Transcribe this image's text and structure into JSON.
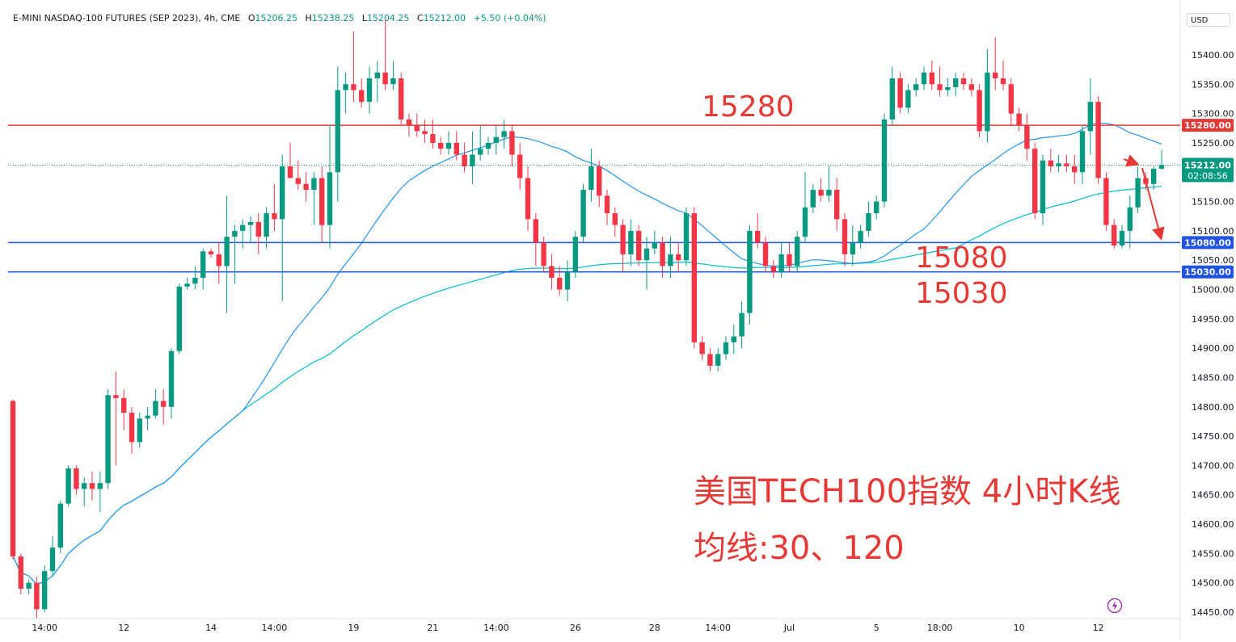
{
  "header": {
    "symbol": "E-MINI NASDAQ-100 FUTURES (SEP 2023), 4h, CME",
    "open_label": "O",
    "open": "15206.25",
    "high_label": "H",
    "high": "15238.25",
    "low_label": "L",
    "low": "15204.25",
    "close_label": "C",
    "close": "15212.00",
    "change": "+5.50 (+0.04%)"
  },
  "currency": "USD",
  "colors": {
    "up": "#089981",
    "down": "#f23645",
    "ma30": "#2196f3",
    "ma120": "#00bcd4",
    "resistance": "#e53935",
    "support": "#1e53e5",
    "annotation": "#e53935"
  },
  "annotations": {
    "resistance": "15280",
    "support_1": "15080",
    "support_2": "15030",
    "caption_line1": "美国TECH100指数 4小时K线",
    "caption_line2": "均线:30、120"
  },
  "chart_data": {
    "type": "candlestick",
    "title": "E-MINI NASDAQ-100 FUTURES (SEP 2023), 4h, CME",
    "ylim": [
      14430,
      15470
    ],
    "y_ticks": [
      14450,
      14500,
      14550,
      14600,
      14650,
      14700,
      14750,
      14800,
      14850,
      14900,
      14950,
      15000,
      15050,
      15100,
      15150,
      15200,
      15250,
      15300,
      15350,
      15400
    ],
    "x_ticks": [
      {
        "label": "14:00",
        "i": 4
      },
      {
        "label": "12",
        "i": 14
      },
      {
        "label": "14",
        "i": 25
      },
      {
        "label": "14:00",
        "i": 33
      },
      {
        "label": "19",
        "i": 43
      },
      {
        "label": "21",
        "i": 53
      },
      {
        "label": "14:00",
        "i": 61
      },
      {
        "label": "26",
        "i": 71
      },
      {
        "label": "28",
        "i": 81
      },
      {
        "label": "14:00",
        "i": 89
      },
      {
        "label": "Jul",
        "i": 98
      },
      {
        "label": "5",
        "i": 109
      },
      {
        "label": "18:00",
        "i": 117
      },
      {
        "label": "10",
        "i": 127
      },
      {
        "label": "12",
        "i": 137
      }
    ],
    "horizontal_lines": [
      {
        "price": 15280,
        "label": "15280.00",
        "role": "resistance"
      },
      {
        "price": 15080,
        "label": "15080.00",
        "role": "support"
      },
      {
        "price": 15030,
        "label": "15030.00",
        "role": "support"
      }
    ],
    "last_price": {
      "price": 15212,
      "label": "15212.00",
      "countdown": "02:08:56"
    },
    "candles": [
      [
        14810,
        14812,
        14540,
        14545
      ],
      [
        14545,
        14550,
        14480,
        14490
      ],
      [
        14490,
        14505,
        14480,
        14500
      ],
      [
        14500,
        14510,
        14440,
        14455
      ],
      [
        14455,
        14530,
        14450,
        14520
      ],
      [
        14520,
        14580,
        14510,
        14560
      ],
      [
        14560,
        14640,
        14550,
        14635
      ],
      [
        14635,
        14700,
        14630,
        14695
      ],
      [
        14695,
        14700,
        14650,
        14660
      ],
      [
        14660,
        14680,
        14630,
        14670
      ],
      [
        14670,
        14690,
        14640,
        14660
      ],
      [
        14660,
        14690,
        14620,
        14670
      ],
      [
        14670,
        14830,
        14660,
        14820
      ],
      [
        14820,
        14860,
        14700,
        14815
      ],
      [
        14815,
        14830,
        14760,
        14790
      ],
      [
        14790,
        14800,
        14720,
        14740
      ],
      [
        14740,
        14790,
        14730,
        14780
      ],
      [
        14780,
        14800,
        14760,
        14785
      ],
      [
        14785,
        14830,
        14780,
        14810
      ],
      [
        14810,
        14830,
        14770,
        14800
      ],
      [
        14800,
        14900,
        14780,
        14895
      ],
      [
        14895,
        15010,
        14890,
        15005
      ],
      [
        15005,
        15020,
        15000,
        15010
      ],
      [
        15010,
        15040,
        15000,
        15020
      ],
      [
        15020,
        15070,
        15000,
        15065
      ],
      [
        15065,
        15070,
        15055,
        15060
      ],
      [
        15060,
        15080,
        15010,
        15040
      ],
      [
        15040,
        15160,
        14960,
        15090
      ],
      [
        15090,
        15110,
        15010,
        15100
      ],
      [
        15100,
        15120,
        15070,
        15110
      ],
      [
        15110,
        15125,
        15080,
        15115
      ],
      [
        15115,
        15130,
        15060,
        15090
      ],
      [
        15090,
        15140,
        15070,
        15130
      ],
      [
        15130,
        15180,
        15100,
        15120
      ],
      [
        15120,
        15230,
        14980,
        15210
      ],
      [
        15210,
        15250,
        15200,
        15190
      ],
      [
        15190,
        15220,
        15170,
        15180
      ],
      [
        15180,
        15200,
        15150,
        15170
      ],
      [
        15170,
        15200,
        15110,
        15190
      ],
      [
        15190,
        15210,
        15080,
        15110
      ],
      [
        15110,
        15280,
        15070,
        15200
      ],
      [
        15200,
        15380,
        15150,
        15340
      ],
      [
        15340,
        15370,
        15300,
        15350
      ],
      [
        15350,
        15440,
        15320,
        15340
      ],
      [
        15340,
        15360,
        15310,
        15320
      ],
      [
        15320,
        15380,
        15300,
        15360
      ],
      [
        15360,
        15390,
        15320,
        15370
      ],
      [
        15370,
        15460,
        15340,
        15350
      ],
      [
        15350,
        15390,
        15340,
        15360
      ],
      [
        15360,
        15370,
        15280,
        15290
      ],
      [
        15290,
        15300,
        15260,
        15280
      ],
      [
        15280,
        15300,
        15260,
        15270
      ],
      [
        15270,
        15290,
        15250,
        15265
      ],
      [
        15265,
        15290,
        15240,
        15250
      ],
      [
        15250,
        15260,
        15230,
        15240
      ],
      [
        15240,
        15270,
        15230,
        15250
      ],
      [
        15250,
        15270,
        15220,
        15230
      ],
      [
        15230,
        15250,
        15200,
        15210
      ],
      [
        15210,
        15270,
        15180,
        15230
      ],
      [
        15230,
        15280,
        15220,
        15240
      ],
      [
        15240,
        15260,
        15230,
        15250
      ],
      [
        15250,
        15280,
        15230,
        15260
      ],
      [
        15260,
        15290,
        15240,
        15270
      ],
      [
        15270,
        15280,
        15210,
        15230
      ],
      [
        15230,
        15250,
        15170,
        15190
      ],
      [
        15190,
        15210,
        15100,
        15120
      ],
      [
        15120,
        15130,
        15040,
        15080
      ],
      [
        15080,
        15090,
        15030,
        15040
      ],
      [
        15040,
        15060,
        15000,
        15020
      ],
      [
        15020,
        15040,
        14990,
        15000
      ],
      [
        15000,
        15050,
        14980,
        15030
      ],
      [
        15030,
        15100,
        15020,
        15090
      ],
      [
        15090,
        15180,
        15080,
        15170
      ],
      [
        15170,
        15240,
        15150,
        15210
      ],
      [
        15210,
        15220,
        15140,
        15160
      ],
      [
        15160,
        15170,
        15110,
        15130
      ],
      [
        15130,
        15140,
        15090,
        15110
      ],
      [
        15110,
        15120,
        15030,
        15060
      ],
      [
        15060,
        15120,
        15040,
        15100
      ],
      [
        15100,
        15110,
        15040,
        15050
      ],
      [
        15050,
        15090,
        15000,
        15070
      ],
      [
        15070,
        15100,
        15060,
        15080
      ],
      [
        15080,
        15090,
        15020,
        15040
      ],
      [
        15040,
        15090,
        15020,
        15060
      ],
      [
        15060,
        15080,
        15030,
        15050
      ],
      [
        15050,
        15140,
        15040,
        15130
      ],
      [
        15130,
        15140,
        14900,
        14910
      ],
      [
        14910,
        14920,
        14880,
        14890
      ],
      [
        14890,
        14900,
        14860,
        14870
      ],
      [
        14870,
        14900,
        14860,
        14890
      ],
      [
        14890,
        14920,
        14880,
        14910
      ],
      [
        14910,
        14940,
        14890,
        14920
      ],
      [
        14920,
        14980,
        14900,
        14960
      ],
      [
        14960,
        15110,
        14940,
        15100
      ],
      [
        15100,
        15130,
        15070,
        15080
      ],
      [
        15080,
        15090,
        15030,
        15040
      ],
      [
        15040,
        15050,
        15020,
        15030
      ],
      [
        15030,
        15080,
        15020,
        15060
      ],
      [
        15060,
        15080,
        15030,
        15040
      ],
      [
        15040,
        15100,
        15030,
        15090
      ],
      [
        15090,
        15200,
        15080,
        15140
      ],
      [
        15140,
        15180,
        15130,
        15170
      ],
      [
        15170,
        15190,
        15150,
        15160
      ],
      [
        15160,
        15210,
        15150,
        15170
      ],
      [
        15170,
        15190,
        15100,
        15120
      ],
      [
        15120,
        15130,
        15040,
        15060
      ],
      [
        15060,
        15110,
        15040,
        15080
      ],
      [
        15080,
        15110,
        15070,
        15100
      ],
      [
        15100,
        15150,
        15090,
        15130
      ],
      [
        15130,
        15160,
        15120,
        15150
      ],
      [
        15150,
        15300,
        15140,
        15290
      ],
      [
        15290,
        15380,
        15280,
        15360
      ],
      [
        15360,
        15370,
        15300,
        15310
      ],
      [
        15310,
        15350,
        15300,
        15340
      ],
      [
        15340,
        15360,
        15330,
        15350
      ],
      [
        15350,
        15380,
        15340,
        15370
      ],
      [
        15370,
        15390,
        15340,
        15350
      ],
      [
        15350,
        15380,
        15330,
        15340
      ],
      [
        15340,
        15360,
        15330,
        15345
      ],
      [
        15345,
        15370,
        15330,
        15360
      ],
      [
        15360,
        15370,
        15340,
        15350
      ],
      [
        15350,
        15360,
        15330,
        15340
      ],
      [
        15340,
        15350,
        15260,
        15270
      ],
      [
        15270,
        15410,
        15250,
        15370
      ],
      [
        15370,
        15430,
        15340,
        15360
      ],
      [
        15360,
        15390,
        15340,
        15350
      ],
      [
        15350,
        15360,
        15280,
        15300
      ],
      [
        15300,
        15310,
        15270,
        15280
      ],
      [
        15280,
        15300,
        15220,
        15240
      ],
      [
        15240,
        15250,
        15120,
        15130
      ],
      [
        15130,
        15230,
        15110,
        15220
      ],
      [
        15220,
        15240,
        15200,
        15210
      ],
      [
        15210,
        15230,
        15200,
        15215
      ],
      [
        15215,
        15230,
        15200,
        15210
      ],
      [
        15210,
        15230,
        15180,
        15200
      ],
      [
        15200,
        15280,
        15180,
        15270
      ],
      [
        15270,
        15360,
        15230,
        15320
      ],
      [
        15320,
        15330,
        15180,
        15190
      ],
      [
        15190,
        15200,
        15100,
        15110
      ],
      [
        15110,
        15120,
        15070,
        15075
      ],
      [
        15075,
        15110,
        15070,
        15100
      ],
      [
        15100,
        15160,
        15070,
        15140
      ],
      [
        15140,
        15210,
        15130,
        15190
      ],
      [
        15190,
        15200,
        15170,
        15180
      ],
      [
        15180,
        15210,
        15170,
        15206
      ],
      [
        15206,
        15238,
        15204,
        15212
      ]
    ]
  }
}
